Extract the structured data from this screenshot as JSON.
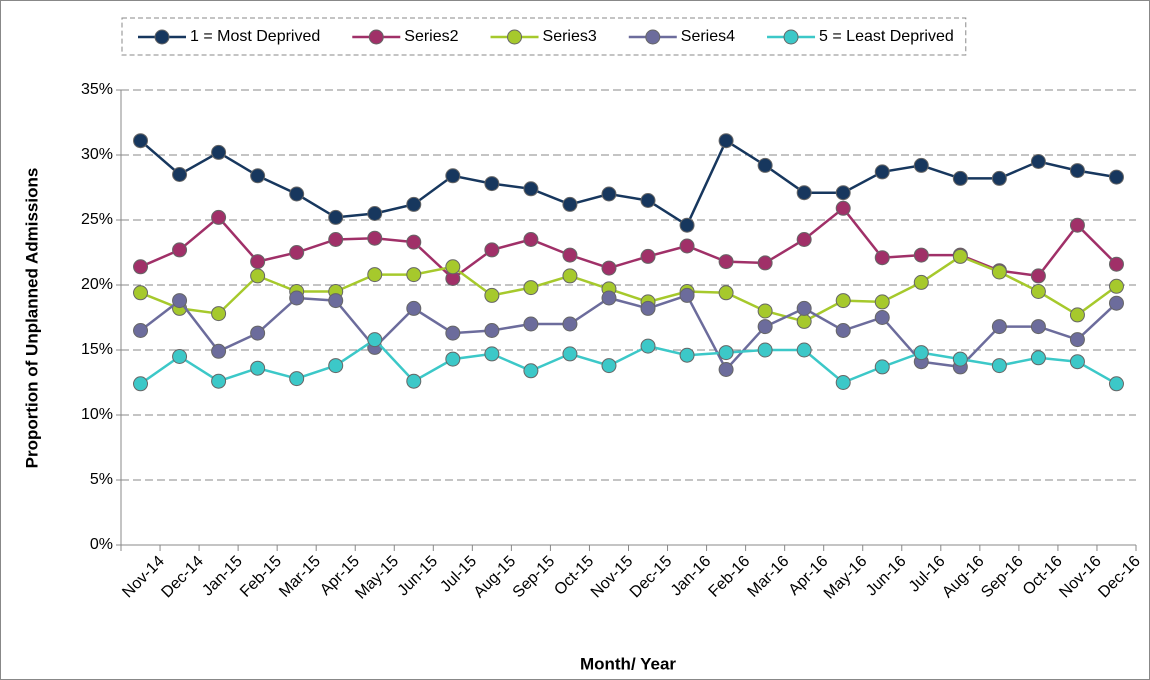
{
  "chart_data": {
    "type": "line",
    "x_label": "Month/ Year",
    "y_label": "Proportion of Unplanned Admissions",
    "categories": [
      "Nov-14",
      "Dec-14",
      "Jan-15",
      "Feb-15",
      "Mar-15",
      "Apr-15",
      "May-15",
      "Jun-15",
      "Jul-15",
      "Aug-15",
      "Sep-15",
      "Oct-15",
      "Nov-15",
      "Dec-15",
      "Jan-16",
      "Feb-16",
      "Mar-16",
      "Apr-16",
      "May-16",
      "Jun-16",
      "Jul-16",
      "Aug-16",
      "Sep-16",
      "Oct-16",
      "Nov-16",
      "Dec-16"
    ],
    "series": [
      {
        "name": "1 = Most Deprived",
        "color": "#17375e",
        "values": [
          31.1,
          28.5,
          30.2,
          28.4,
          27.0,
          25.2,
          25.5,
          26.2,
          28.4,
          27.8,
          27.4,
          26.2,
          27.0,
          26.5,
          24.6,
          31.1,
          29.2,
          27.1,
          27.1,
          28.7,
          29.2,
          28.2,
          28.2,
          29.5,
          28.8,
          28.3
        ]
      },
      {
        "name": "Series2",
        "color": "#a03068",
        "values": [
          21.4,
          22.7,
          25.2,
          21.8,
          22.5,
          23.5,
          23.6,
          23.3,
          20.5,
          22.7,
          23.5,
          22.3,
          21.3,
          22.2,
          23.0,
          21.8,
          21.7,
          23.5,
          25.9,
          22.1,
          22.3,
          22.3,
          21.1,
          20.7,
          24.6,
          21.6
        ]
      },
      {
        "name": "Series3",
        "color": "#a6c92c",
        "values": [
          19.4,
          18.2,
          17.8,
          20.7,
          19.5,
          19.5,
          20.8,
          20.8,
          21.4,
          19.2,
          19.8,
          20.7,
          19.7,
          18.7,
          19.5,
          19.4,
          18.0,
          17.2,
          18.8,
          18.7,
          20.2,
          22.2,
          21.0,
          19.5,
          17.7,
          19.9
        ]
      },
      {
        "name": "Series4",
        "color": "#6c6c9c",
        "values": [
          16.5,
          18.8,
          14.9,
          16.3,
          19.0,
          18.8,
          15.2,
          18.2,
          16.3,
          16.5,
          17.0,
          17.0,
          19.0,
          18.2,
          19.2,
          13.5,
          16.8,
          18.2,
          16.5,
          17.5,
          14.1,
          13.7,
          16.8,
          16.8,
          15.8,
          18.6
        ]
      },
      {
        "name": "5 = Least Deprived",
        "color": "#3cc8c8",
        "values": [
          12.4,
          14.5,
          12.6,
          13.6,
          12.8,
          13.8,
          15.8,
          12.6,
          14.3,
          14.7,
          13.4,
          14.7,
          13.8,
          15.3,
          14.6,
          14.8,
          15.0,
          15.0,
          12.5,
          13.7,
          14.8,
          14.3,
          13.8,
          14.4,
          14.1,
          12.4
        ]
      }
    ],
    "ylim": [
      0,
      35
    ],
    "yticks": [
      {
        "value": 0,
        "label": "0%"
      },
      {
        "value": 5,
        "label": "5%"
      },
      {
        "value": 10,
        "label": "10%"
      },
      {
        "value": 15,
        "label": "15%"
      },
      {
        "value": 20,
        "label": "20%"
      },
      {
        "value": 25,
        "label": "25%"
      },
      {
        "value": 30,
        "label": "30%"
      },
      {
        "value": 35,
        "label": "35%"
      }
    ],
    "grid": true,
    "legend": "top"
  }
}
